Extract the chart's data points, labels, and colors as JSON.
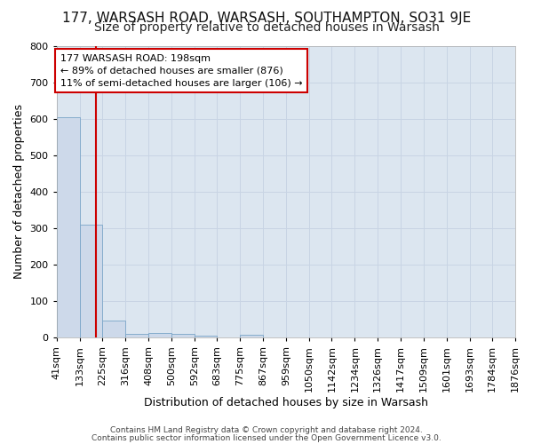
{
  "title1": "177, WARSASH ROAD, WARSASH, SOUTHAMPTON, SO31 9JE",
  "title2": "Size of property relative to detached houses in Warsash",
  "xlabel": "Distribution of detached houses by size in Warsash",
  "ylabel": "Number of detached properties",
  "bar_values": [
    605,
    310,
    48,
    10,
    13,
    10,
    5,
    0,
    8,
    0,
    0,
    0,
    0,
    0,
    0,
    0,
    0,
    0,
    0,
    0
  ],
  "bin_edges": [
    41,
    133,
    225,
    316,
    408,
    500,
    592,
    683,
    775,
    867,
    959,
    1050,
    1142,
    1234,
    1326,
    1417,
    1509,
    1601,
    1693,
    1784,
    1876
  ],
  "xtick_labels": [
    "41sqm",
    "133sqm",
    "225sqm",
    "316sqm",
    "408sqm",
    "500sqm",
    "592sqm",
    "683sqm",
    "775sqm",
    "867sqm",
    "959sqm",
    "1050sqm",
    "1142sqm",
    "1234sqm",
    "1326sqm",
    "1417sqm",
    "1509sqm",
    "1601sqm",
    "1693sqm",
    "1784sqm",
    "1876sqm"
  ],
  "ylim": [
    0,
    800
  ],
  "yticks": [
    0,
    100,
    200,
    300,
    400,
    500,
    600,
    700,
    800
  ],
  "bar_color": "#cdd9ea",
  "bar_edge_color": "#7aa5c8",
  "property_size": 198,
  "property_line_color": "#cc0000",
  "annotation_line1": "177 WARSASH ROAD: 198sqm",
  "annotation_line2": "← 89% of detached houses are smaller (876)",
  "annotation_line3": "11% of semi-detached houses are larger (106) →",
  "annotation_box_color": "#ffffff",
  "annotation_box_edge": "#cc0000",
  "footer1": "Contains HM Land Registry data © Crown copyright and database right 2024.",
  "footer2": "Contains public sector information licensed under the Open Government Licence v3.0.",
  "bg_color": "#ffffff",
  "plot_bg_color": "#dce6f0",
  "grid_color": "#c8d4e4",
  "title1_fontsize": 11,
  "title2_fontsize": 10,
  "axis_label_fontsize": 9,
  "tick_fontsize": 8,
  "annotation_fontsize": 8,
  "footer_fontsize": 6.5
}
